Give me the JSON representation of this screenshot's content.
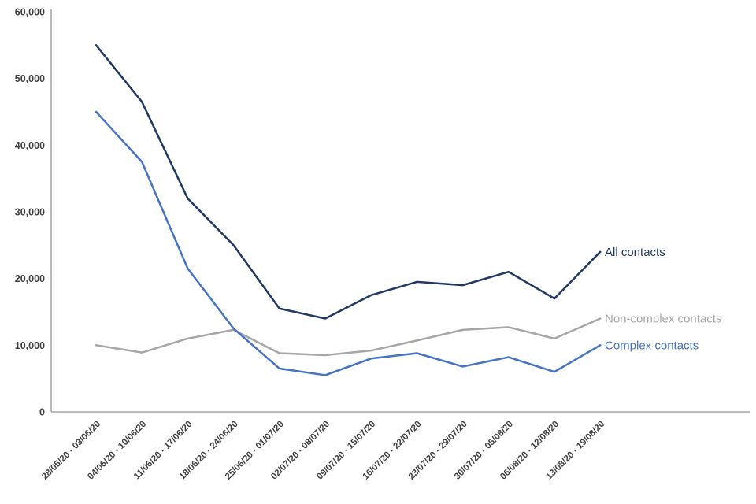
{
  "chart_data": {
    "type": "line",
    "title": "",
    "xlabel": "",
    "ylabel": "",
    "grid": false,
    "legend_position": "right-end-of-line-labels",
    "ylim": [
      0,
      60000
    ],
    "y_ticks": [
      0,
      10000,
      20000,
      30000,
      40000,
      50000,
      60000
    ],
    "y_tick_labels": [
      "0",
      "10,000",
      "20,000",
      "30,000",
      "40,000",
      "50,000",
      "60,000"
    ],
    "categories": [
      "28/05/20 - 03/06/20",
      "04/06/20 - 10/06/20",
      "11/06/20 - 17/06/20",
      "18/06/20 - 24/06/20",
      "25/06/20 - 01/07/20",
      "02/07/20 - 08/07/20",
      "09/07/20 - 15/07/20",
      "16/07/20 - 22/07/20",
      "23/07/20 - 29/07/20",
      "30/07/20 - 05/08/20",
      "06/08/20 - 12/08/20",
      "13/08/20 - 19/08/20"
    ],
    "series": [
      {
        "name": "Non-complex contacts",
        "color": "#a6a6a6",
        "values": [
          10000,
          8900,
          11000,
          12300,
          8800,
          8500,
          9200,
          10700,
          12300,
          12700,
          11000,
          14000
        ]
      },
      {
        "name": "Complex contacts",
        "color": "#4472c4",
        "values": [
          45000,
          37500,
          21500,
          12500,
          6500,
          5500,
          8000,
          8800,
          6800,
          8200,
          6000,
          10000
        ]
      },
      {
        "name": "All contacts",
        "color": "#1f3864",
        "values": [
          55000,
          46500,
          32000,
          25000,
          15500,
          14000,
          17500,
          19500,
          19000,
          21000,
          17000,
          24000
        ]
      }
    ]
  }
}
